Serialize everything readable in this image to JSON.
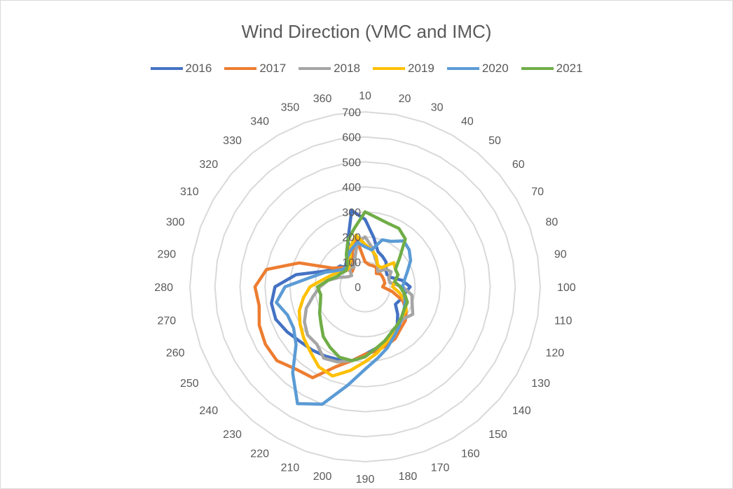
{
  "chart_data": {
    "type": "radar",
    "title": "Wind Direction (VMC and IMC)",
    "categories": [
      "10",
      "20",
      "30",
      "40",
      "50",
      "60",
      "70",
      "80",
      "90",
      "100",
      "110",
      "120",
      "130",
      "140",
      "150",
      "160",
      "170",
      "180",
      "190",
      "200",
      "210",
      "220",
      "230",
      "240",
      "250",
      "260",
      "270",
      "280",
      "290",
      "300",
      "310",
      "320",
      "330",
      "340",
      "350",
      "360"
    ],
    "radial_ticks": [
      "0",
      "100",
      "200",
      "300",
      "400",
      "500",
      "600",
      "700"
    ],
    "rmax": 700,
    "gridlines": true,
    "legend_position": "top",
    "series": [
      {
        "name": "2016",
        "color": "#4472c4",
        "values": [
          270,
          200,
          150,
          140,
          130,
          110,
          100,
          110,
          150,
          180,
          160,
          150,
          140,
          170,
          200,
          220,
          240,
          250,
          270,
          300,
          310,
          320,
          330,
          340,
          360,
          380,
          380,
          360,
          280,
          180,
          140,
          130,
          90,
          120,
          200,
          310
        ]
      },
      {
        "name": "2017",
        "color": "#ed7d31",
        "values": [
          100,
          90,
          90,
          90,
          70,
          80,
          80,
          80,
          80,
          70,
          110,
          160,
          190,
          210,
          220,
          240,
          250,
          260,
          270,
          300,
          340,
          420,
          430,
          460,
          460,
          450,
          430,
          440,
          400,
          280,
          150,
          120,
          80,
          90,
          150,
          190
        ]
      },
      {
        "name": "2018",
        "color": "#a5a5a5",
        "values": [
          200,
          160,
          120,
          100,
          80,
          110,
          120,
          100,
          100,
          150,
          190,
          200,
          220,
          200,
          200,
          210,
          240,
          250,
          280,
          300,
          320,
          330,
          300,
          300,
          280,
          250,
          210,
          180,
          150,
          110,
          80,
          70,
          100,
          90,
          120,
          180
        ]
      },
      {
        "name": "2019",
        "color": "#ffc000",
        "values": [
          170,
          150,
          130,
          100,
          100,
          150,
          140,
          140,
          120,
          110,
          140,
          170,
          190,
          190,
          200,
          220,
          240,
          270,
          300,
          340,
          380,
          370,
          340,
          320,
          300,
          280,
          250,
          220,
          170,
          140,
          120,
          100,
          100,
          120,
          170,
          210
        ]
      },
      {
        "name": "2020",
        "color": "#5b9bd5",
        "values": [
          160,
          150,
          200,
          210,
          240,
          230,
          210,
          180,
          160,
          150,
          160,
          170,
          180,
          190,
          210,
          230,
          260,
          290,
          330,
          400,
          500,
          540,
          450,
          360,
          330,
          330,
          360,
          320,
          220,
          170,
          130,
          110,
          120,
          140,
          160,
          180
        ]
      },
      {
        "name": "2021",
        "color": "#70ad47",
        "values": [
          300,
          280,
          270,
          270,
          250,
          180,
          140,
          140,
          120,
          140,
          160,
          180,
          180,
          190,
          200,
          210,
          230,
          250,
          280,
          300,
          300,
          280,
          260,
          230,
          210,
          190,
          180,
          190,
          150,
          120,
          110,
          100,
          110,
          150,
          200,
          240
        ]
      }
    ]
  }
}
